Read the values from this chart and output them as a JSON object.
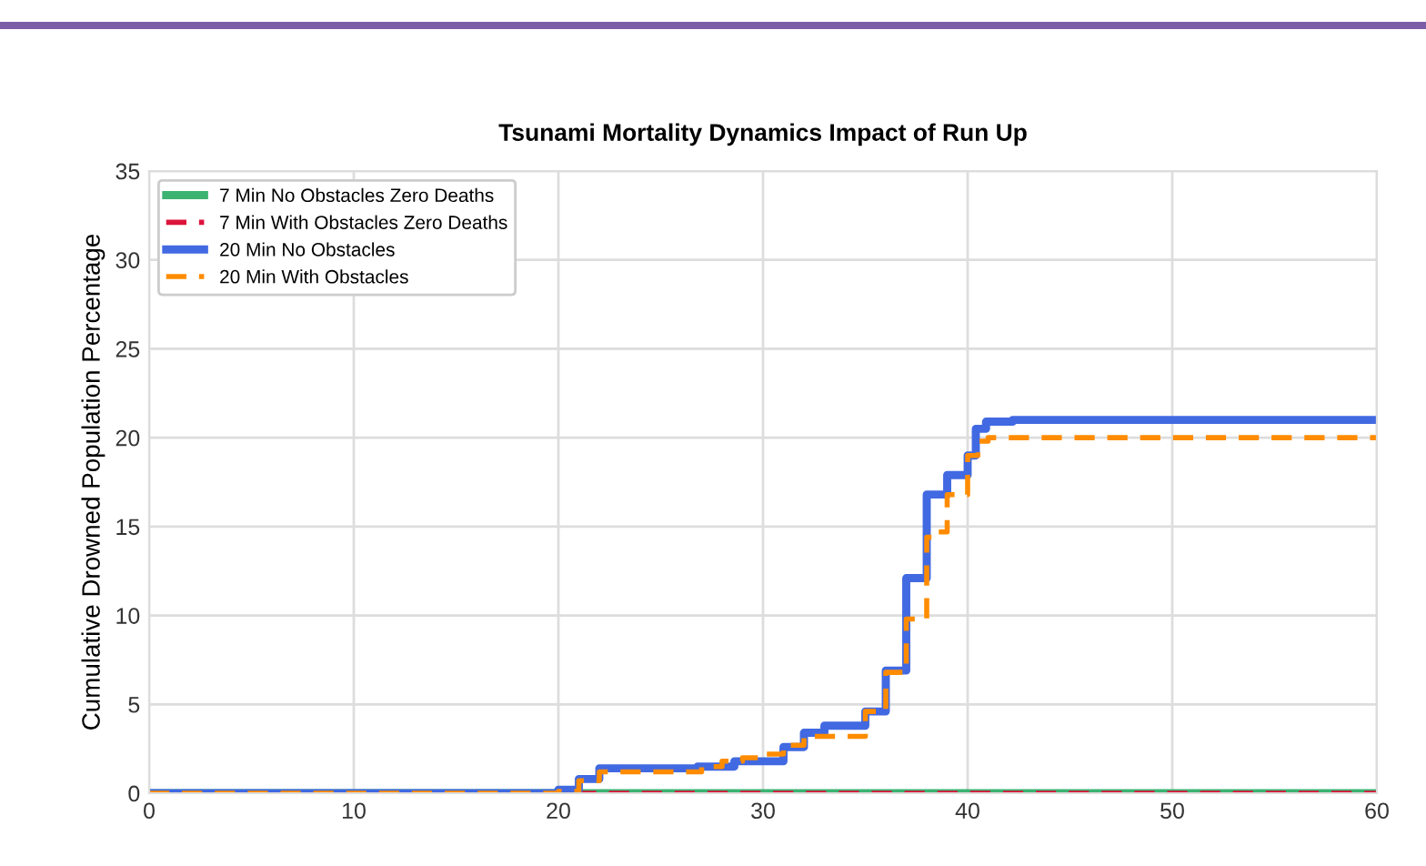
{
  "chart_data": {
    "type": "step",
    "title": "Tsunami Mortality Dynamics Impact of Run Up",
    "ylabel": "Cumulative Drowned Population Percentage",
    "xlim": [
      0,
      60
    ],
    "xticks": [
      0,
      10,
      20,
      30,
      40,
      50,
      60
    ],
    "ylim": [
      0,
      35
    ],
    "yticks": [
      0,
      5,
      10,
      15,
      20,
      25,
      30,
      35
    ],
    "grid": true,
    "legend": "top left",
    "series": [
      {
        "name": "7 Min No Obstacles Zero Deaths",
        "color": "#3cb371",
        "line_style": "solid",
        "x": [
          0,
          60
        ],
        "values": [
          0,
          0
        ]
      },
      {
        "name": "7 Min With Obstacles Zero Deaths",
        "color": "#dc143c",
        "line_style": "dashed",
        "x": [
          0,
          60
        ],
        "values": [
          0,
          0
        ]
      },
      {
        "name": "20 Min No Obstacles",
        "color": "#4169e1",
        "line_style": "solid",
        "x": [
          0,
          20,
          21,
          22,
          26.8,
          28.6,
          31,
          32,
          33,
          35,
          36,
          37,
          38,
          39,
          40,
          40.4,
          40.9,
          42.2,
          60
        ],
        "values": [
          0,
          0.2,
          0.8,
          1.4,
          1.5,
          1.8,
          2.6,
          3.4,
          3.8,
          4.6,
          6.9,
          12.1,
          16.8,
          17.9,
          19.0,
          20.5,
          20.9,
          21.0,
          21.0
        ]
      },
      {
        "name": "20 Min With Obstacles",
        "color": "#ff8c00",
        "line_style": "dashed",
        "x": [
          0,
          20,
          21,
          22,
          27,
          28,
          29,
          30,
          31,
          32,
          35,
          36,
          37,
          38,
          38.5,
          39,
          40,
          40.5,
          41,
          60
        ],
        "values": [
          0,
          0.1,
          0.7,
          1.2,
          1.5,
          1.8,
          2.0,
          2.2,
          2.7,
          3.2,
          4.6,
          6.8,
          9.8,
          14.4,
          14.7,
          16.8,
          19.0,
          19.8,
          20.0,
          20.0
        ]
      }
    ]
  }
}
